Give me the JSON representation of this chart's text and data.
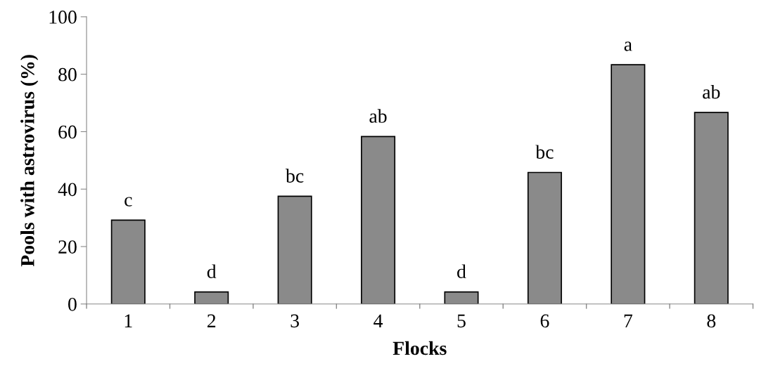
{
  "chart_data": {
    "type": "bar",
    "xlabel": "Flocks",
    "ylabel": "Pools with astrovirus (%)",
    "categories": [
      "1",
      "2",
      "3",
      "4",
      "5",
      "6",
      "7",
      "8"
    ],
    "values": [
      29.2,
      4.2,
      37.5,
      58.3,
      4.2,
      45.8,
      83.3,
      66.7
    ],
    "color": "#8a8a8a",
    "ylim": [
      0,
      100
    ],
    "yticks": [
      0,
      20,
      40,
      60,
      80,
      100
    ],
    "grid": false,
    "annotations": [
      {
        "text": "c",
        "x": "1",
        "y": 29.2
      },
      {
        "text": "d",
        "x": "2",
        "y": 4.2
      },
      {
        "text": "bc",
        "x": "3",
        "y": 37.5
      },
      {
        "text": "ab",
        "x": "4",
        "y": 58.3
      },
      {
        "text": "d",
        "x": "5",
        "y": 4.2
      },
      {
        "text": "bc",
        "x": "6",
        "y": 45.8
      },
      {
        "text": "a",
        "x": "7",
        "y": 83.3
      },
      {
        "text": "ab",
        "x": "8",
        "y": 66.7
      }
    ]
  }
}
